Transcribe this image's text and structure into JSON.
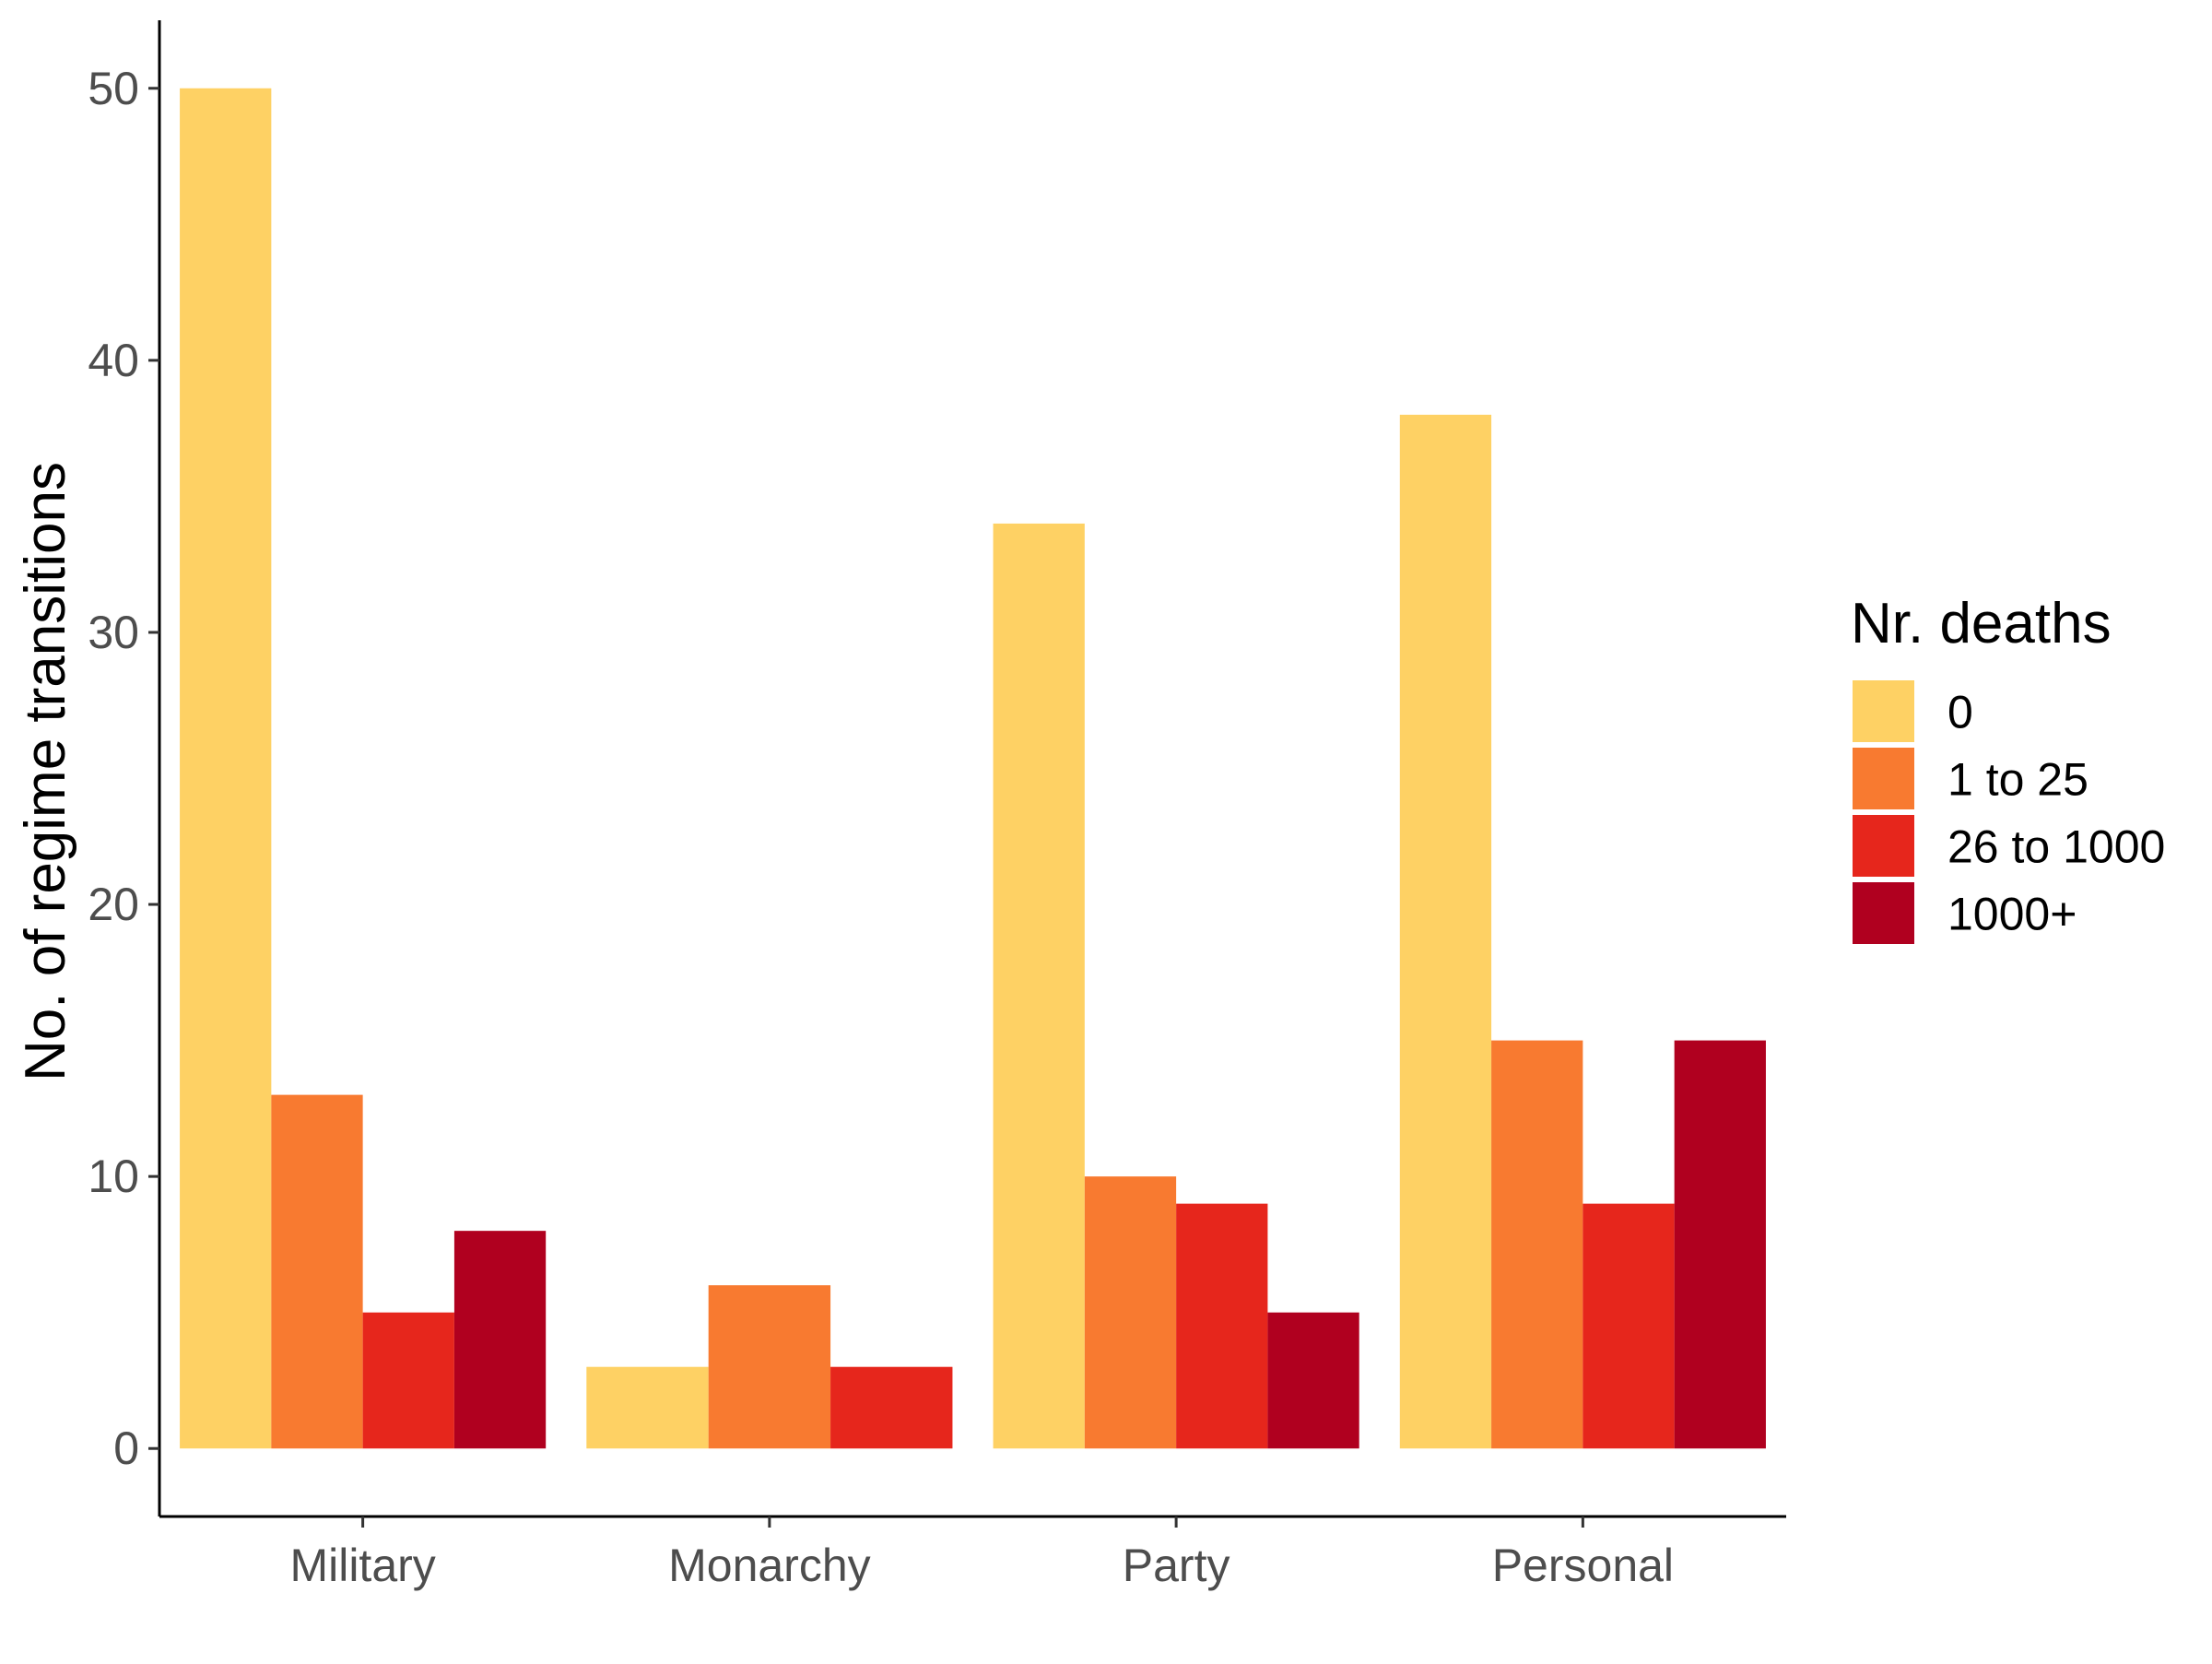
{
  "chart_data": {
    "type": "bar",
    "title": "",
    "xlabel": "",
    "ylabel": "No. of regime transitions",
    "categories": [
      "Military",
      "Monarchy",
      "Party",
      "Personal"
    ],
    "ylim": [
      -2.5,
      52.5
    ],
    "yticks": [
      0,
      10,
      20,
      30,
      40,
      50
    ],
    "grid": false,
    "legend": {
      "title": "Nr. deaths",
      "position": "right"
    },
    "series": [
      {
        "name": "0",
        "color": "#FED164",
        "values": [
          50,
          3,
          34,
          38
        ]
      },
      {
        "name": "1 to 25",
        "color": "#F87A30",
        "values": [
          13,
          6,
          10,
          15
        ]
      },
      {
        "name": "26 to 1000",
        "color": "#E6261C",
        "values": [
          5,
          3,
          9,
          9
        ]
      },
      {
        "name": "1000+",
        "color": "#B0001F",
        "values": [
          8,
          null,
          5,
          15
        ]
      }
    ]
  }
}
